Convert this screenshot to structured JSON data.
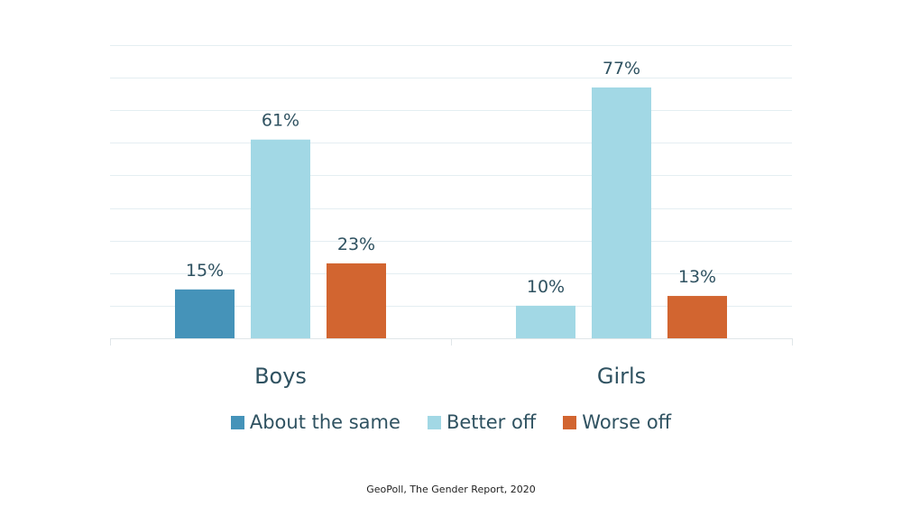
{
  "chart_data": {
    "type": "bar",
    "title": "",
    "xlabel": "",
    "ylabel": "",
    "ylim": [
      0,
      90
    ],
    "grid": true,
    "legend_position": "bottom",
    "categories": [
      "Boys",
      "Girls"
    ],
    "series": [
      {
        "name": "About the same",
        "color": "#4593b9",
        "values": [
          15,
          10
        ],
        "labels": [
          "15%",
          "10%"
        ],
        "point_colors": [
          "#4593b9",
          "#a2d8e5"
        ]
      },
      {
        "name": "Better off",
        "color": "#a2d8e5",
        "values": [
          61,
          77
        ],
        "labels": [
          "61%",
          "77%"
        ]
      },
      {
        "name": "Worse off",
        "color": "#d26530",
        "values": [
          23,
          13
        ],
        "labels": [
          "23%",
          "13%"
        ]
      }
    ]
  },
  "source": "GeoPoll, The Gender Report, 2020"
}
